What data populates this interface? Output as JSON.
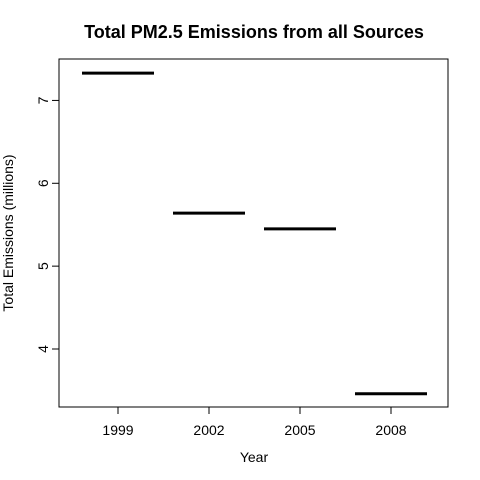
{
  "chart_data": {
    "type": "bar",
    "style": "step",
    "title": "Total PM2.5 Emissions from all Sources",
    "xlabel": "Year",
    "ylabel": "Total Emissions (millions)",
    "categories": [
      "1999",
      "2002",
      "2005",
      "2008"
    ],
    "values": [
      7.33,
      5.64,
      5.45,
      3.46
    ],
    "ylim": [
      3.3,
      7.5
    ],
    "yticks": [
      4,
      5,
      6,
      7
    ],
    "grid": false,
    "legend": "none",
    "line_color": "#000000"
  }
}
